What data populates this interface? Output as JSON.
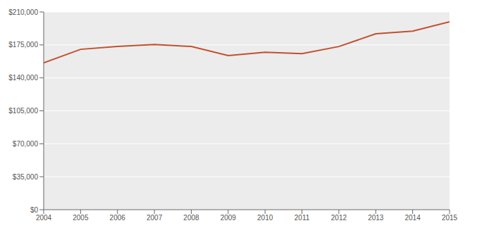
{
  "chart_data": {
    "type": "line",
    "x": [
      2004,
      2005,
      2006,
      2007,
      2008,
      2009,
      2010,
      2011,
      2012,
      2013,
      2014,
      2015
    ],
    "values": [
      156000,
      170300,
      173300,
      175500,
      173300,
      163600,
      167300,
      165800,
      173300,
      186800,
      189700,
      199500
    ],
    "color": "#c2502e",
    "xlim": [
      2004,
      2015
    ],
    "xticks": [
      2004,
      2005,
      2006,
      2007,
      2008,
      2009,
      2010,
      2011,
      2012,
      2013,
      2014,
      2015
    ],
    "ylim": [
      0,
      210000
    ],
    "yticks": [
      {
        "value": 0,
        "label": "$0"
      },
      {
        "value": 35000,
        "label": "$35,000"
      },
      {
        "value": 70000,
        "label": "$70,000"
      },
      {
        "value": 105000,
        "label": "$105,000"
      },
      {
        "value": 140000,
        "label": "$140,000"
      },
      {
        "value": 175000,
        "label": "$175,000"
      },
      {
        "value": 210000,
        "label": "$210,000"
      }
    ],
    "grid": true
  }
}
